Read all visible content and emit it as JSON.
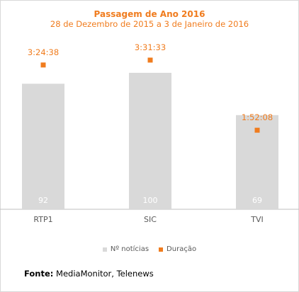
{
  "colors": {
    "bar": "#d9d9d9",
    "marker": "#f07c1e",
    "title": "#f07c1e",
    "axis": "#bfbfbf",
    "tick_text": "#595959",
    "bar_label": "#ffffff"
  },
  "source": {
    "label": "Fonte:",
    "text": "MediaMonitor, Telenews"
  },
  "chart_data": {
    "type": "bar",
    "title": "Passagem de Ano 2016",
    "subtitle": "28 de Dezembro de 2015 a 3 de Janeiro de 2016",
    "categories": [
      "RTP1",
      "SIC",
      "TVI"
    ],
    "series": [
      {
        "name": "Nº notícias",
        "type": "bar",
        "values": [
          92,
          100,
          69
        ],
        "labels": [
          "92",
          "100",
          "69"
        ]
      },
      {
        "name": "Duração",
        "type": "scatter",
        "values": [
          "3:24:38",
          "3:31:33",
          "1:52:08"
        ],
        "labels": [
          "3:24:38",
          "3:31:33",
          "1:52:08"
        ]
      }
    ],
    "legend": "bottom",
    "grid": false
  }
}
